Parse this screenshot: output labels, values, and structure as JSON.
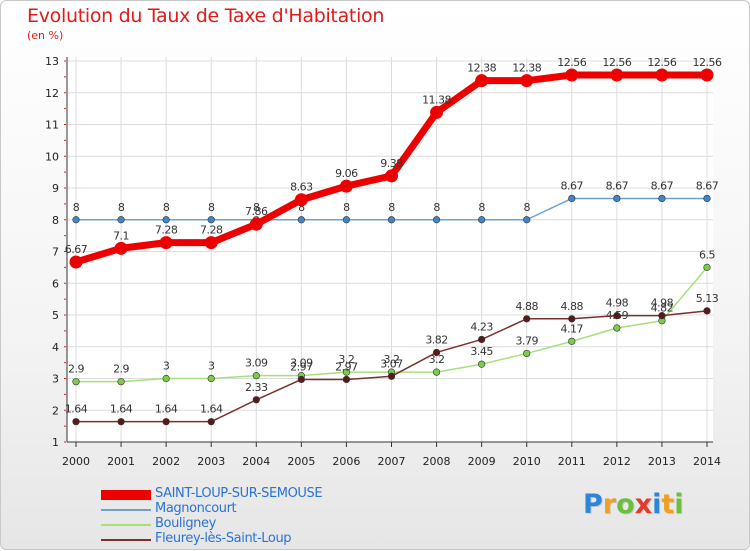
{
  "title": "Evolution du Taux de Taxe d'Habitation",
  "subtitle": "(en %)",
  "logo": {
    "letters": [
      "P",
      "r",
      "o",
      "x",
      "i",
      "t",
      "i"
    ],
    "colors": [
      "#2b86d9",
      "#f0a020",
      "#6cbf3c",
      "#e33b2d",
      "#2b86d9",
      "#f0a020",
      "#6cbf3c"
    ]
  },
  "chart_data": {
    "type": "line",
    "x": [
      "2000",
      "2001",
      "2002",
      "2003",
      "2004",
      "2005",
      "2006",
      "2007",
      "2008",
      "2009",
      "2010",
      "2011",
      "2012",
      "2013",
      "2014"
    ],
    "ylim": [
      1,
      13
    ],
    "yticks": [
      "1",
      "2",
      "3",
      "4",
      "5",
      "6",
      "7",
      "8",
      "9",
      "10",
      "11",
      "12",
      "13"
    ],
    "grid": true,
    "legend_position": "bottom-left",
    "series": [
      {
        "name": "SAINT-LOUP-SUR-SEMOUSE",
        "color": "#ee0000",
        "marker": "#ee0000",
        "width": 7,
        "values": [
          6.67,
          7.1,
          7.28,
          7.28,
          7.86,
          8.63,
          9.06,
          9.38,
          11.38,
          12.38,
          12.38,
          12.56,
          12.56,
          12.56,
          12.56
        ],
        "labels": [
          "6.67",
          "7.1",
          "7.28",
          "7.28",
          "7.86",
          "8.63",
          "9.06",
          "9.38",
          "11.38",
          "12.38",
          "12.38",
          "12.56",
          "12.56",
          "12.56",
          "12.56"
        ]
      },
      {
        "name": "Magnoncourt",
        "color": "#6fa1cf",
        "marker": "#3e86c4",
        "width": 1.5,
        "values": [
          8,
          8,
          8,
          8,
          8,
          8,
          8,
          8,
          8,
          8,
          8,
          8.67,
          8.67,
          8.67,
          8.67
        ],
        "labels": [
          "8",
          "8",
          "8",
          "8",
          "8",
          "8",
          "8",
          "8",
          "8",
          "8",
          "8",
          "8.67",
          "8.67",
          "8.67",
          "8.67"
        ]
      },
      {
        "name": "Bouligney",
        "color": "#a6e07e",
        "marker": "#7ccc4a",
        "width": 1.5,
        "values": [
          2.9,
          2.9,
          3,
          3,
          3.09,
          3.09,
          3.2,
          3.2,
          3.2,
          3.45,
          3.79,
          4.17,
          4.59,
          4.82,
          6.5
        ],
        "labels": [
          "2.9",
          "2.9",
          "3",
          "3",
          "3.09",
          "3.09",
          "3.2",
          "3.2",
          "3.2",
          "3.45",
          "3.79",
          "4.17",
          "4.59",
          "4.82",
          "6.5"
        ]
      },
      {
        "name": "Fleurey-lès-Saint-Loup",
        "color": "#7a3030",
        "marker": "#5a1a1a",
        "width": 1.5,
        "values": [
          1.64,
          1.64,
          1.64,
          1.64,
          2.33,
          2.97,
          2.97,
          3.07,
          3.82,
          4.23,
          4.88,
          4.88,
          4.98,
          4.98,
          5.13
        ],
        "labels": [
          "1.64",
          "1.64",
          "1.64",
          "1.64",
          "2.33",
          "2.97",
          "2.97",
          "3.07",
          "3.82",
          "4.23",
          "4.88",
          "4.88",
          "4.98",
          "4.98",
          "5.13"
        ]
      }
    ]
  }
}
